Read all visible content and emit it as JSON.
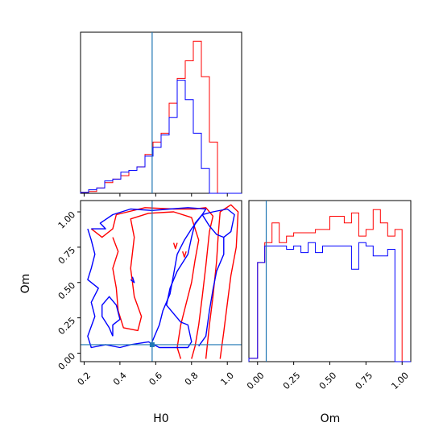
{
  "chart_data": {
    "type": "corner",
    "colors": {
      "red_series": "#ff0000",
      "blue_series": "#0000ff",
      "truth": "#1f77b4"
    },
    "parameters": [
      "H0",
      "Om"
    ],
    "truth": {
      "H0": 0.58,
      "Om": 0.06
    },
    "xlabels": {
      "H0": "H0",
      "Om": "Om"
    },
    "ylabel": "Om",
    "xlim_H0": [
      0.18,
      1.08
    ],
    "xlim_Om": [
      -0.06,
      1.06
    ],
    "ylim_Om": [
      -0.06,
      1.08
    ],
    "ticks_H0": [
      "0.2",
      "0.4",
      "0.6",
      "0.8",
      "1.0"
    ],
    "ticks_Om": [
      "0.00",
      "0.25",
      "0.50",
      "0.75",
      "1.00"
    ],
    "hist_H0": {
      "edges": [
        0.18,
        0.225,
        0.27,
        0.315,
        0.36,
        0.405,
        0.45,
        0.495,
        0.54,
        0.585,
        0.63,
        0.675,
        0.72,
        0.765,
        0.81,
        0.855,
        0.9,
        0.945,
        0.99,
        1.035,
        1.08
      ],
      "red": [
        0.5,
        1,
        3,
        6,
        8,
        10,
        13,
        15,
        22,
        29,
        34,
        51,
        65,
        75,
        86,
        66,
        29,
        0,
        0,
        0
      ],
      "blue": [
        0.5,
        2,
        3,
        7,
        8,
        12,
        13,
        15,
        21,
        26,
        33,
        43,
        64,
        53,
        34,
        14,
        0,
        0,
        0,
        0
      ]
    },
    "hist_Om": {
      "edges": [
        -0.06,
        0.0,
        0.05,
        0.1,
        0.15,
        0.2,
        0.25,
        0.3,
        0.35,
        0.4,
        0.45,
        0.5,
        0.55,
        0.6,
        0.65,
        0.7,
        0.75,
        0.8,
        0.85,
        0.9,
        0.95,
        1.0,
        1.06
      ],
      "red": [
        1,
        30,
        36,
        42,
        36,
        38,
        39,
        39,
        39,
        40,
        40,
        44,
        44,
        42,
        45,
        38,
        40,
        46,
        42,
        38,
        40,
        0
      ],
      "blue": [
        1,
        30,
        35,
        35,
        35,
        34,
        35,
        33,
        36,
        33,
        35,
        35,
        35,
        35,
        28,
        36,
        35,
        32,
        32,
        34,
        0,
        0
      ]
    },
    "contours": {
      "red": [
        [
          [
            0.24,
            0.88
          ],
          [
            0.3,
            0.82
          ],
          [
            0.36,
            0.88
          ],
          [
            0.38,
            0.98
          ],
          [
            0.54,
            1.03
          ],
          [
            0.7,
            1.02
          ],
          [
            0.82,
            1.02
          ],
          [
            0.88,
            1.03
          ],
          [
            0.92,
            0.97
          ],
          [
            0.9,
            0.86
          ],
          [
            0.88,
            0.62
          ],
          [
            0.86,
            0.4
          ],
          [
            0.84,
            0.2
          ],
          [
            0.82,
            0.05
          ],
          [
            0.8,
            -0.04
          ]
        ],
        [
          [
            0.36,
            0.82
          ],
          [
            0.39,
            0.72
          ],
          [
            0.36,
            0.6
          ],
          [
            0.38,
            0.46
          ],
          [
            0.39,
            0.3
          ],
          [
            0.42,
            0.18
          ],
          [
            0.5,
            0.16
          ],
          [
            0.52,
            0.26
          ],
          [
            0.48,
            0.4
          ],
          [
            0.46,
            0.6
          ],
          [
            0.48,
            0.82
          ],
          [
            0.46,
            0.95
          ],
          [
            0.56,
            0.99
          ],
          [
            0.7,
            1.0
          ],
          [
            0.8,
            0.96
          ],
          [
            0.84,
            0.8
          ],
          [
            0.82,
            0.66
          ],
          [
            0.8,
            0.5
          ],
          [
            0.78,
            0.4
          ],
          [
            0.74,
            0.2
          ],
          [
            0.72,
            0.04
          ],
          [
            0.74,
            -0.04
          ]
        ],
        [
          [
            0.75,
            0.72
          ],
          [
            0.76,
            0.68
          ],
          [
            0.77,
            0.72
          ]
        ],
        [
          [
            0.7,
            0.78
          ],
          [
            0.71,
            0.74
          ],
          [
            0.72,
            0.78
          ]
        ],
        [
          [
            0.88,
            -0.04
          ],
          [
            0.9,
            0.2
          ],
          [
            0.92,
            0.4
          ],
          [
            0.94,
            0.65
          ],
          [
            0.95,
            0.85
          ],
          [
            0.96,
            1.0
          ],
          [
            1.02,
            1.05
          ],
          [
            1.06,
            1.0
          ],
          [
            1.05,
            0.75
          ],
          [
            1.02,
            0.55
          ],
          [
            1.0,
            0.35
          ],
          [
            0.98,
            0.15
          ],
          [
            0.96,
            -0.04
          ]
        ]
      ],
      "blue": [
        [
          [
            0.24,
            0.88
          ],
          [
            0.32,
            0.88
          ],
          [
            0.29,
            0.92
          ],
          [
            0.36,
            0.98
          ],
          [
            0.46,
            1.02
          ],
          [
            0.58,
            1.01
          ],
          [
            0.68,
            1.02
          ],
          [
            0.78,
            1.03
          ],
          [
            0.88,
            1.02
          ],
          [
            0.86,
            0.98
          ],
          [
            0.82,
            0.92
          ],
          [
            0.8,
            0.82
          ],
          [
            0.78,
            0.7
          ],
          [
            0.72,
            0.58
          ],
          [
            0.68,
            0.46
          ],
          [
            0.66,
            0.34
          ],
          [
            0.7,
            0.28
          ],
          [
            0.74,
            0.22
          ],
          [
            0.78,
            0.2
          ],
          [
            0.8,
            0.08
          ],
          [
            0.78,
            0.04
          ],
          [
            0.62,
            0.04
          ],
          [
            0.56,
            0.08
          ],
          [
            0.46,
            0.06
          ],
          [
            0.4,
            0.04
          ],
          [
            0.32,
            0.06
          ],
          [
            0.24,
            0.04
          ],
          [
            0.22,
            0.12
          ],
          [
            0.26,
            0.26
          ],
          [
            0.24,
            0.36
          ],
          [
            0.28,
            0.46
          ],
          [
            0.22,
            0.52
          ],
          [
            0.24,
            0.6
          ],
          [
            0.26,
            0.7
          ],
          [
            0.24,
            0.8
          ],
          [
            0.22,
            0.88
          ]
        ],
        [
          [
            0.9,
            0.9
          ],
          [
            0.86,
            0.98
          ],
          [
            0.92,
            1.0
          ],
          [
            1.0,
            1.02
          ],
          [
            1.04,
            0.98
          ],
          [
            1.02,
            0.86
          ],
          [
            0.98,
            0.82
          ],
          [
            0.94,
            0.84
          ],
          [
            0.9,
            0.9
          ]
        ],
        [
          [
            0.84,
            0.05
          ],
          [
            0.88,
            0.12
          ],
          [
            0.9,
            0.3
          ],
          [
            0.92,
            0.45
          ],
          [
            0.94,
            0.58
          ],
          [
            0.98,
            0.7
          ],
          [
            0.98,
            0.82
          ]
        ],
        [
          [
            0.36,
            0.12
          ],
          [
            0.36,
            0.2
          ],
          [
            0.4,
            0.24
          ],
          [
            0.38,
            0.34
          ],
          [
            0.34,
            0.4
          ],
          [
            0.3,
            0.34
          ],
          [
            0.3,
            0.26
          ],
          [
            0.34,
            0.18
          ],
          [
            0.36,
            0.12
          ]
        ],
        [
          [
            0.46,
            0.52
          ],
          [
            0.48,
            0.5
          ],
          [
            0.47,
            0.54
          ]
        ],
        [
          [
            0.58,
            0.08
          ],
          [
            0.62,
            0.2
          ],
          [
            0.64,
            0.3
          ],
          [
            0.68,
            0.42
          ],
          [
            0.7,
            0.56
          ],
          [
            0.72,
            0.7
          ],
          [
            0.76,
            0.8
          ],
          [
            0.8,
            0.88
          ],
          [
            0.86,
            0.98
          ]
        ]
      ]
    }
  }
}
